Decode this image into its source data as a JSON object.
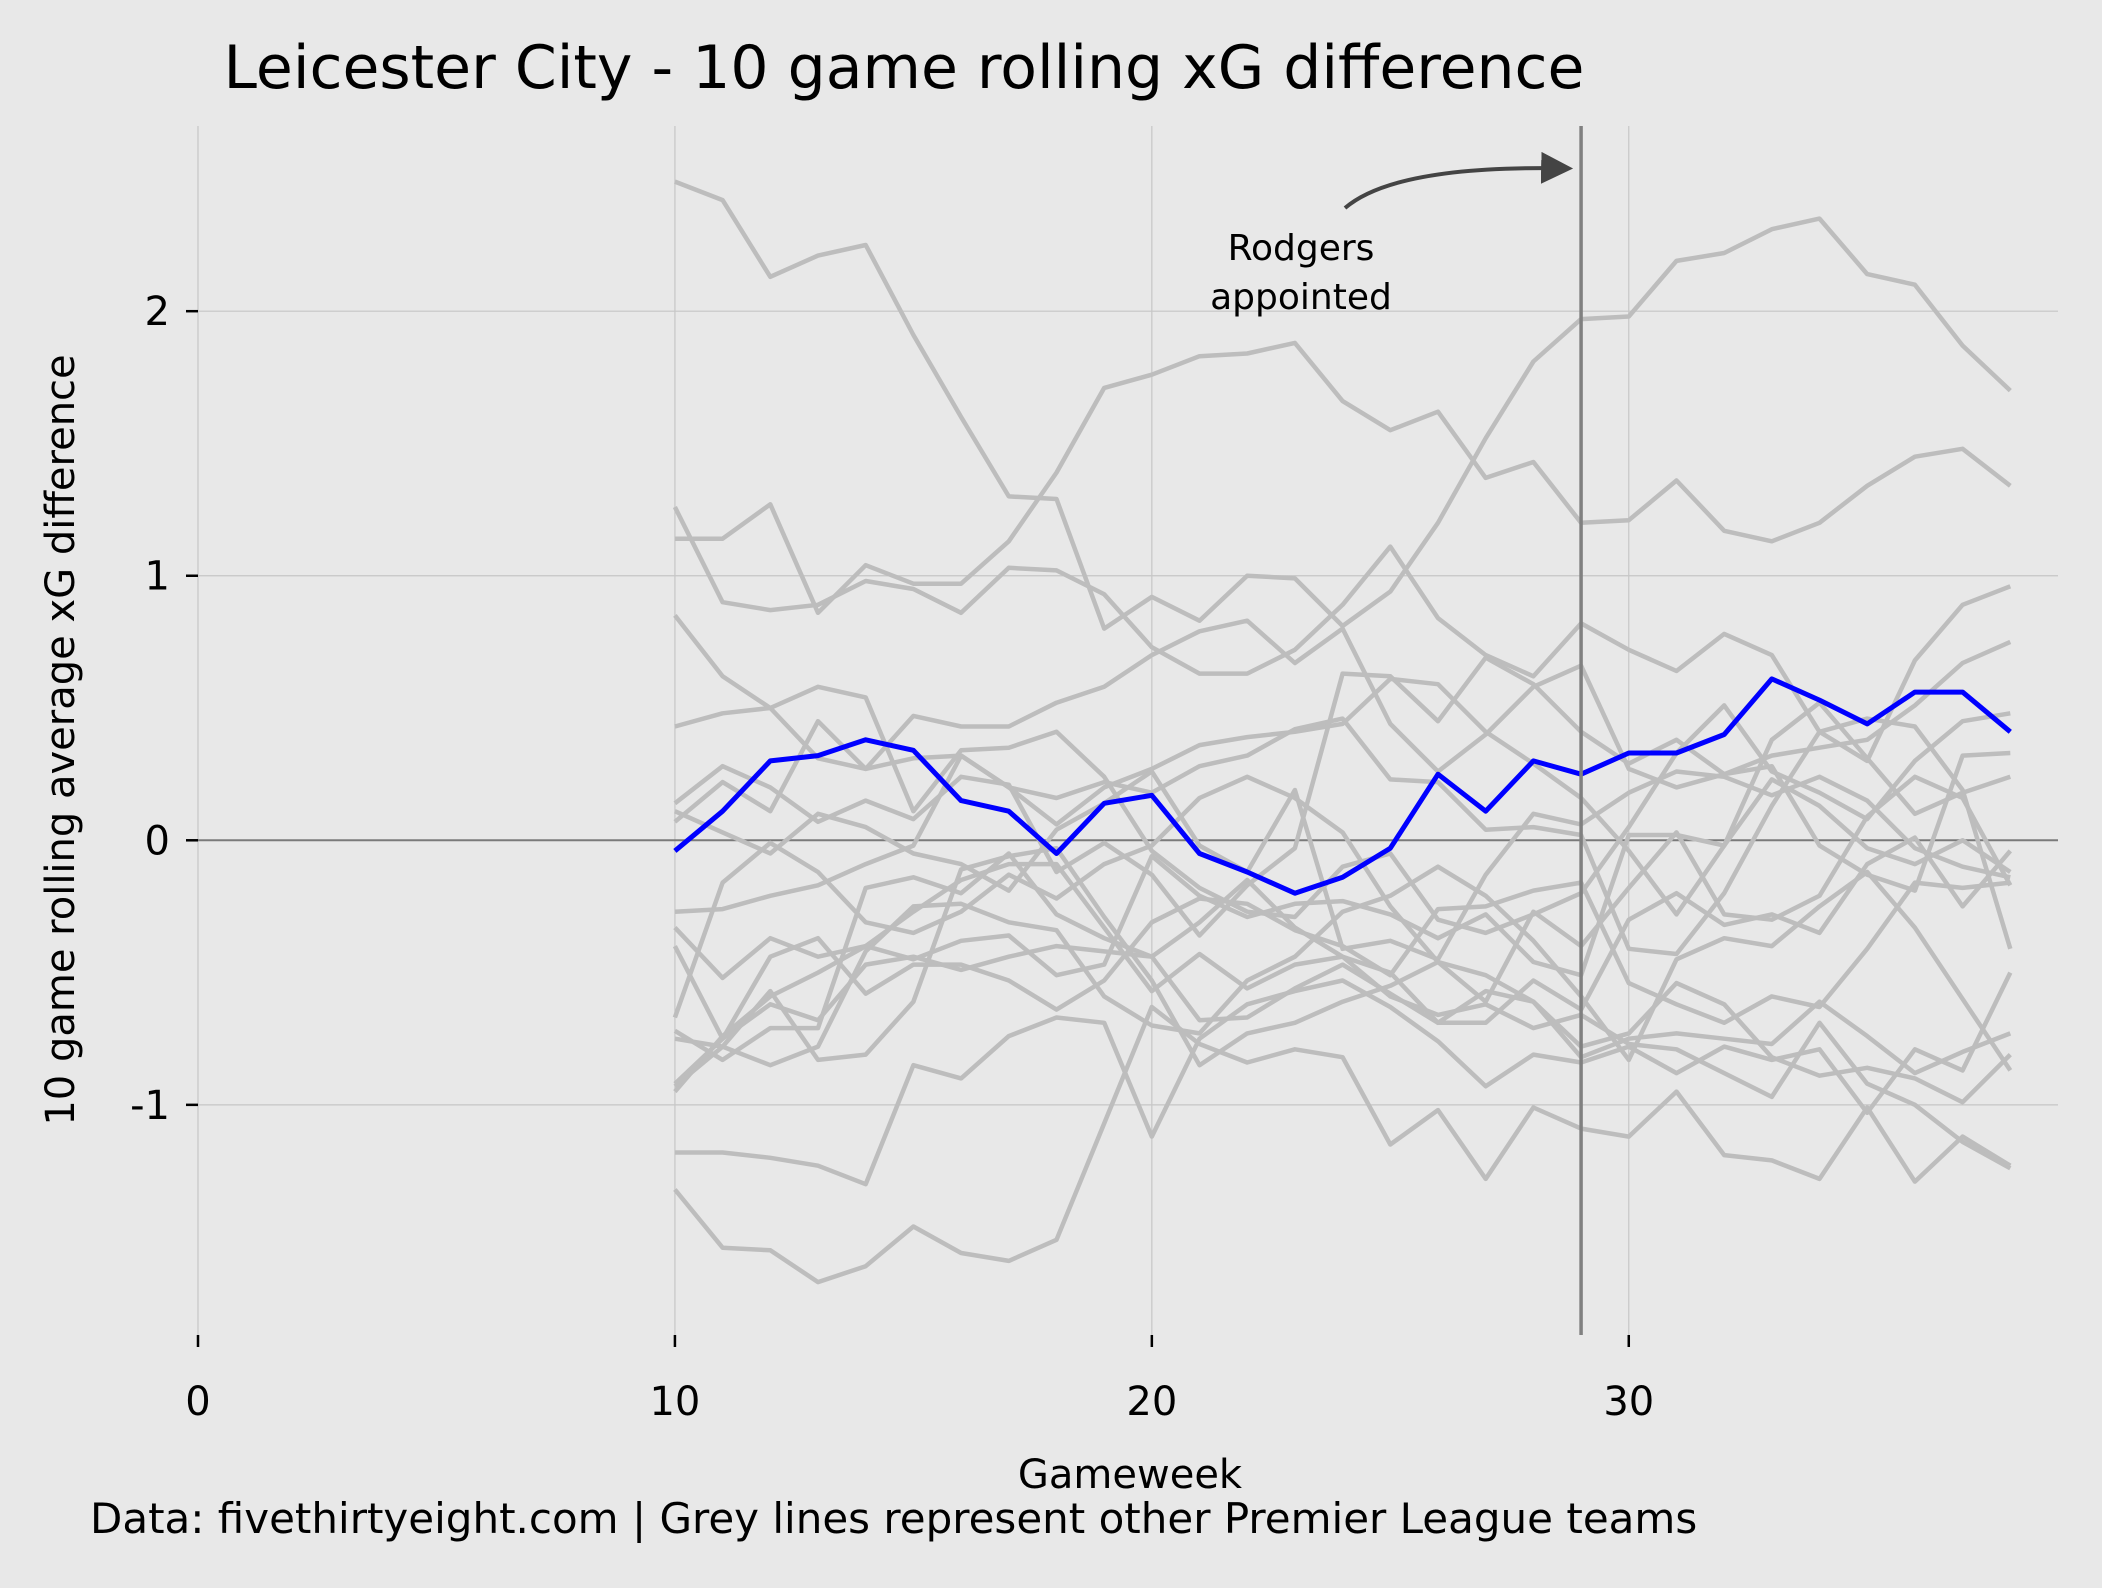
{
  "chart_data": {
    "type": "line",
    "title": "Leicester City - 10 game rolling xG difference",
    "xlabel": "Gameweek",
    "ylabel": "10 game rolling average xG difference",
    "xlim": [
      0,
      39
    ],
    "ylim": [
      -1.87,
      2.7
    ],
    "xticks": [
      0,
      10,
      20,
      30
    ],
    "yticks": [
      2,
      1,
      0,
      -1
    ],
    "grid": true,
    "x": [
      10,
      11,
      12,
      13,
      14,
      15,
      16,
      17,
      18,
      19,
      20,
      21,
      22,
      23,
      24,
      25,
      26,
      27,
      28,
      29,
      30,
      31,
      32,
      33,
      34,
      35,
      36,
      37,
      38
    ],
    "highlight": {
      "name": "Leicester City",
      "color": "#0000ff",
      "values": [
        -0.04,
        0.11,
        0.3,
        0.32,
        0.38,
        0.34,
        0.15,
        0.11,
        -0.05,
        0.14,
        0.17,
        -0.05,
        -0.12,
        -0.2,
        -0.14,
        -0.03,
        0.25,
        0.11,
        0.3,
        0.25,
        0.33,
        0.33,
        0.4,
        0.61,
        0.53,
        0.44,
        0.56,
        0.56,
        0.41
      ]
    },
    "other_teams_color": "#bdbdbd",
    "other_teams": [
      [
        2.49,
        2.42,
        2.13,
        2.21,
        2.25,
        1.91,
        1.6,
        1.3,
        1.29,
        0.8,
        0.92,
        0.83,
        1.0,
        0.99,
        0.81,
        0.94,
        1.2,
        1.52,
        1.81,
        1.97,
        1.98,
        2.19,
        2.22,
        2.31,
        2.35,
        2.14,
        2.1,
        1.87,
        1.7
      ],
      [
        1.14,
        1.14,
        1.27,
        0.86,
        1.04,
        0.97,
        0.97,
        1.13,
        1.39,
        1.71,
        1.76,
        1.83,
        1.84,
        1.88,
        1.66,
        1.55,
        1.62,
        1.37,
        1.43,
        1.2,
        1.21,
        1.36,
        1.17,
        1.13,
        1.2,
        1.34,
        1.45,
        1.48,
        1.34
      ],
      [
        1.26,
        0.9,
        0.87,
        0.89,
        0.98,
        0.95,
        0.86,
        1.03,
        1.02,
        0.93,
        0.73,
        0.63,
        0.63,
        0.72,
        0.89,
        1.11,
        0.84,
        0.7,
        0.62,
        0.82,
        0.72,
        0.64,
        0.78,
        0.7,
        0.41,
        0.3,
        0.68,
        0.89,
        0.96
      ],
      [
        0.85,
        0.62,
        0.5,
        0.31,
        0.27,
        0.47,
        0.43,
        0.43,
        0.52,
        0.58,
        0.7,
        0.79,
        0.83,
        0.67,
        0.8,
        0.44,
        0.26,
        0.4,
        0.58,
        0.66,
        0.27,
        0.2,
        0.25,
        0.32,
        0.35,
        0.38,
        0.51,
        0.67,
        0.75
      ],
      [
        0.43,
        0.48,
        0.5,
        0.58,
        0.54,
        0.11,
        0.34,
        0.35,
        0.41,
        0.24,
        -0.04,
        -0.18,
        -0.27,
        -0.29,
        -0.1,
        -0.05,
        -0.3,
        -0.35,
        -0.28,
        -0.2,
        0.05,
        0.33,
        0.51,
        0.26,
        0.18,
        0.08,
        0.3,
        0.45,
        0.48
      ],
      [
        0.14,
        0.28,
        0.2,
        0.07,
        0.15,
        0.08,
        0.24,
        0.21,
        -0.12,
        -0.01,
        -0.13,
        -0.36,
        -0.17,
        -0.03,
        0.63,
        0.62,
        0.45,
        0.69,
        0.59,
        0.41,
        0.29,
        0.38,
        0.25,
        0.28,
        -0.02,
        -0.13,
        -0.19,
        0.32,
        0.33
      ],
      [
        0.07,
        0.22,
        0.11,
        0.45,
        0.27,
        0.31,
        0.32,
        0.2,
        0.06,
        0.2,
        0.27,
        0.36,
        0.39,
        0.41,
        0.44,
        0.61,
        0.59,
        0.41,
        0.29,
        0.16,
        -0.04,
        -0.28,
        -0.02,
        0.38,
        0.52,
        0.31,
        0.1,
        0.18,
        0.24
      ],
      [
        0.11,
        0.03,
        -0.05,
        0.1,
        0.05,
        -0.05,
        -0.09,
        -0.19,
        0.04,
        0.14,
        0.26,
        -0.02,
        -0.12,
        0.19,
        -0.41,
        -0.38,
        -0.45,
        -0.13,
        0.1,
        0.06,
        0.18,
        0.26,
        0.24,
        0.17,
        0.24,
        0.15,
        -0.03,
        -0.1,
        -0.14
      ],
      [
        -0.27,
        -0.26,
        -0.21,
        -0.17,
        -0.09,
        -0.02,
        0.32,
        0.2,
        0.16,
        0.22,
        0.18,
        0.28,
        0.32,
        0.42,
        0.46,
        0.23,
        0.22,
        0.04,
        0.05,
        0.02,
        -0.41,
        -0.43,
        -0.2,
        0.13,
        0.41,
        0.46,
        0.43,
        0.19,
        -0.41
      ],
      [
        -0.33,
        -0.52,
        -0.37,
        -0.44,
        -0.4,
        -0.45,
        -0.38,
        -0.36,
        -0.51,
        -0.47,
        -0.06,
        -0.21,
        -0.29,
        -0.24,
        -0.23,
        -0.28,
        -0.37,
        -0.28,
        -0.46,
        -0.51,
        0.02,
        0.02,
        -0.02,
        0.23,
        0.13,
        -0.03,
        -0.09,
        0.0,
        -0.12
      ],
      [
        -0.4,
        -0.75,
        -0.44,
        -0.37,
        -0.58,
        -0.47,
        -0.47,
        -0.53,
        -0.64,
        -0.53,
        -0.31,
        -0.22,
        -0.24,
        -0.34,
        -0.4,
        -0.51,
        -0.26,
        -0.25,
        -0.19,
        -0.16,
        -0.54,
        -0.62,
        -0.69,
        -0.59,
        -0.63,
        -0.41,
        -0.16,
        -0.18,
        -0.16
      ],
      [
        -0.67,
        -0.16,
        -0.01,
        -0.12,
        -0.31,
        -0.35,
        -0.27,
        -0.13,
        -0.22,
        -0.09,
        -0.02,
        0.16,
        0.24,
        0.16,
        0.03,
        -0.25,
        -0.46,
        -0.61,
        -0.27,
        -0.4,
        -0.18,
        0.03,
        -0.28,
        -0.3,
        -0.21,
        0.09,
        0.24,
        0.16,
        -0.17
      ],
      [
        -0.72,
        -0.83,
        -0.71,
        -0.71,
        -0.18,
        -0.14,
        -0.2,
        -0.05,
        -0.28,
        -0.37,
        -0.44,
        -0.31,
        -0.15,
        -0.33,
        -0.44,
        -0.5,
        -0.69,
        -0.69,
        -0.53,
        -0.64,
        -0.3,
        -0.2,
        -0.32,
        -0.28,
        -0.35,
        -0.09,
        0.01,
        -0.25,
        -0.04
      ],
      [
        -0.75,
        -0.78,
        -0.85,
        -0.78,
        -0.42,
        -0.25,
        -0.24,
        -0.31,
        -0.34,
        -0.59,
        -0.7,
        -0.73,
        -0.53,
        -0.44,
        -0.27,
        -0.21,
        -0.1,
        -0.21,
        -0.38,
        -0.59,
        -0.83,
        -0.45,
        -0.37,
        -0.4,
        -0.25,
        -0.12,
        -0.33,
        -0.6,
        -0.87
      ],
      [
        -0.92,
        -0.75,
        -0.62,
        -0.68,
        -0.47,
        -0.44,
        -0.49,
        -0.44,
        -0.4,
        -0.42,
        -0.44,
        -0.68,
        -0.67,
        -0.56,
        -0.47,
        -0.58,
        -0.69,
        -0.57,
        -0.61,
        -0.78,
        -0.73,
        -0.54,
        -0.62,
        -0.82,
        -0.89,
        -0.86,
        -0.9,
        -0.99,
        -0.81
      ],
      [
        -0.95,
        -0.74,
        -0.59,
        -0.5,
        -0.4,
        -0.27,
        -0.15,
        -0.09,
        -0.09,
        -0.33,
        -0.57,
        -0.43,
        -0.56,
        -0.47,
        -0.44,
        -0.59,
        -0.66,
        -0.62,
        -0.71,
        -0.66,
        -0.77,
        -0.79,
        -0.88,
        -0.97,
        -0.69,
        -0.92,
        -1.0,
        -1.14,
        -1.24
      ],
      [
        -0.93,
        -0.78,
        -0.57,
        -0.83,
        -0.81,
        -0.61,
        -0.11,
        -0.06,
        -0.03,
        -0.29,
        -0.53,
        -0.85,
        -0.73,
        -0.69,
        -0.61,
        -0.55,
        -0.46,
        -0.51,
        -0.61,
        -0.82,
        -0.75,
        -0.73,
        -0.75,
        -0.77,
        -0.61,
        -0.74,
        -0.88,
        -0.8,
        -0.73
      ],
      [
        -1.18,
        -1.18,
        -1.2,
        -1.23,
        -1.3,
        -0.85,
        -0.9,
        -0.74,
        -0.67,
        -0.69,
        -1.12,
        -0.75,
        -0.62,
        -0.57,
        -0.53,
        -0.63,
        -0.76,
        -0.93,
        -0.81,
        -0.84,
        -0.78,
        -0.88,
        -0.78,
        -0.83,
        -0.79,
        -1.03,
        -0.79,
        -0.87,
        -0.5
      ],
      [
        -1.32,
        -1.54,
        -1.55,
        -1.67,
        -1.61,
        -1.46,
        -1.56,
        -1.59,
        -1.51,
        -1.07,
        -0.63,
        -0.77,
        -0.84,
        -0.79,
        -0.82,
        -1.15,
        -1.02,
        -1.28,
        -1.01,
        -1.09,
        -1.12,
        -0.95,
        -1.19,
        -1.21,
        -1.28,
        -1.01,
        -1.29,
        -1.12,
        -1.23
      ]
    ],
    "annotations": [
      {
        "type": "vline",
        "x": 29,
        "color": "#808080"
      },
      {
        "type": "arrow",
        "text_lines": [
          "Rodgers",
          "appointed"
        ],
        "target_x": 29,
        "target_y": 2.54
      }
    ],
    "footer": "Data: fivethirtyeight.com | Grey lines represent other Premier League teams"
  }
}
